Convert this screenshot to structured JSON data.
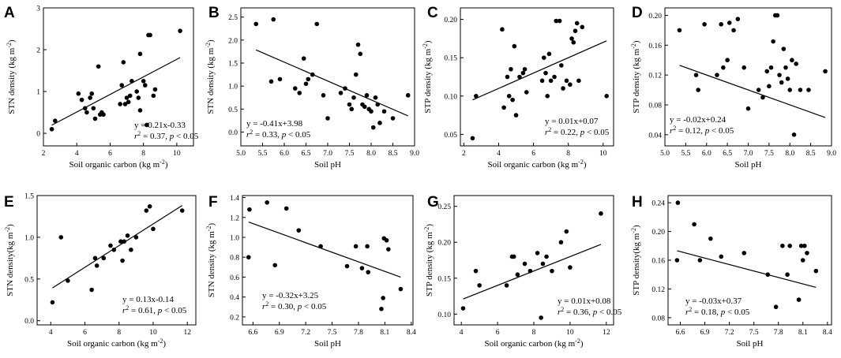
{
  "chart_data": [
    {
      "letter": "A",
      "type": "scatter",
      "xlabel": "Soil organic carbon (kg m⁻²)",
      "ylabel": "STN density (kg m⁻²)",
      "xlim": [
        2,
        11
      ],
      "ylim": [
        -0.3,
        3
      ],
      "xticks": [
        2,
        4,
        6,
        8,
        10
      ],
      "yticks": [
        0,
        1,
        2,
        3
      ],
      "x": [
        2.5,
        2.7,
        4.1,
        4.3,
        4.5,
        4.6,
        4.8,
        4.9,
        5.0,
        5.1,
        5.3,
        5.4,
        5.5,
        5.6,
        6.6,
        6.7,
        6.8,
        6.9,
        7.0,
        7.1,
        7.2,
        7.3,
        7.6,
        7.7,
        7.8,
        7.8,
        8.0,
        8.1,
        8.2,
        8.3,
        8.4,
        8.6,
        8.7,
        10.2
      ],
      "y": [
        0.1,
        0.3,
        0.95,
        0.8,
        0.6,
        0.5,
        0.85,
        0.95,
        0.6,
        0.35,
        1.6,
        0.45,
        0.5,
        0.45,
        0.7,
        1.15,
        1.7,
        0.7,
        0.85,
        0.75,
        0.9,
        1.25,
        1.0,
        0.85,
        1.9,
        0.55,
        1.25,
        1.15,
        0.2,
        2.35,
        2.35,
        0.9,
        1.05,
        2.45
      ],
      "fit": {
        "slope": 0.21,
        "intercept": -0.33
      },
      "equation": "y = 0.21x-0.33",
      "r2": "0.37",
      "p": "0.05"
    },
    {
      "letter": "B",
      "type": "scatter",
      "xlabel": "Soil pH",
      "ylabel": "STN density (kg m⁻²)",
      "xlim": [
        5,
        9
      ],
      "ylim": [
        -0.3,
        2.7
      ],
      "xticks": [
        5.0,
        5.5,
        6.0,
        6.5,
        7.0,
        7.5,
        8.0,
        8.5,
        9.0
      ],
      "yticks": [
        0.0,
        0.5,
        1.0,
        1.5,
        2.0,
        2.5
      ],
      "x": [
        5.35,
        5.7,
        5.75,
        5.9,
        6.25,
        6.35,
        6.45,
        6.5,
        6.55,
        6.65,
        6.75,
        6.9,
        7.0,
        7.3,
        7.4,
        7.5,
        7.55,
        7.6,
        7.65,
        7.7,
        7.75,
        7.8,
        7.85,
        7.9,
        7.95,
        8.0,
        8.05,
        8.1,
        8.15,
        8.2,
        8.3,
        8.5,
        8.85
      ],
      "y": [
        2.35,
        1.1,
        2.45,
        1.15,
        0.95,
        0.85,
        1.6,
        1.05,
        1.15,
        1.25,
        2.35,
        0.8,
        0.3,
        0.85,
        0.95,
        0.6,
        0.5,
        0.75,
        1.25,
        1.9,
        1.7,
        0.6,
        0.55,
        0.8,
        0.5,
        0.45,
        0.1,
        0.75,
        0.6,
        0.2,
        0.45,
        0.3,
        0.8
      ],
      "fit": {
        "slope": -0.41,
        "intercept": 3.98
      },
      "equation": "y = -0.41x+3.98",
      "r2": "0.33",
      "p": "0.05"
    },
    {
      "letter": "C",
      "type": "scatter",
      "xlabel": "Soil organic carbon (kg m⁻²)",
      "ylabel": "STP density (kg m⁻²)",
      "xlim": [
        1.8,
        10.6
      ],
      "ylim": [
        0.035,
        0.215
      ],
      "xticks": [
        2,
        4,
        6,
        8,
        10
      ],
      "yticks": [
        0.05,
        0.1,
        0.15,
        0.2
      ],
      "x": [
        2.5,
        2.7,
        4.2,
        4.3,
        4.5,
        4.6,
        4.7,
        4.8,
        4.9,
        5.0,
        5.2,
        5.4,
        5.5,
        5.6,
        6.5,
        6.6,
        6.7,
        6.8,
        6.9,
        7.0,
        7.2,
        7.3,
        7.5,
        7.6,
        7.7,
        7.9,
        8.1,
        8.2,
        8.3,
        8.4,
        8.5,
        8.6,
        8.8,
        10.2
      ],
      "y": [
        0.045,
        0.1,
        0.187,
        0.085,
        0.125,
        0.1,
        0.135,
        0.095,
        0.165,
        0.075,
        0.125,
        0.13,
        0.135,
        0.105,
        0.12,
        0.15,
        0.13,
        0.1,
        0.155,
        0.12,
        0.125,
        0.198,
        0.198,
        0.14,
        0.11,
        0.12,
        0.115,
        0.175,
        0.17,
        0.185,
        0.195,
        0.12,
        0.19,
        0.1
      ],
      "fit": {
        "slope": 0.01,
        "intercept": 0.07
      },
      "equation": "y = 0.01x+0.07",
      "r2": "0.22",
      "p": "0.05"
    },
    {
      "letter": "D",
      "type": "scatter",
      "xlabel": "Soil pH",
      "ylabel": "STP density (kg m⁻²)",
      "xlim": [
        5,
        9
      ],
      "ylim": [
        0.025,
        0.21
      ],
      "xticks": [
        5.0,
        5.5,
        6.0,
        6.5,
        7.0,
        7.5,
        8.0,
        8.5,
        9.0
      ],
      "yticks": [
        0.04,
        0.08,
        0.12,
        0.16,
        0.2
      ],
      "x": [
        5.35,
        5.75,
        5.8,
        5.95,
        6.25,
        6.35,
        6.4,
        6.5,
        6.55,
        6.65,
        6.75,
        6.9,
        7.0,
        7.25,
        7.35,
        7.45,
        7.5,
        7.55,
        7.6,
        7.65,
        7.7,
        7.75,
        7.8,
        7.85,
        7.9,
        7.95,
        8.0,
        8.05,
        8.1,
        8.15,
        8.25,
        8.45,
        8.85
      ],
      "y": [
        0.18,
        0.12,
        0.1,
        0.188,
        0.12,
        0.188,
        0.13,
        0.14,
        0.19,
        0.18,
        0.195,
        0.13,
        0.075,
        0.1,
        0.09,
        0.125,
        0.105,
        0.13,
        0.165,
        0.2,
        0.2,
        0.12,
        0.11,
        0.155,
        0.13,
        0.115,
        0.1,
        0.14,
        0.04,
        0.135,
        0.1,
        0.1,
        0.125
      ],
      "fit": {
        "slope": -0.02,
        "intercept": 0.24
      },
      "equation": "y = -0.02x+0.24",
      "r2": "0.12",
      "p": "0.05"
    },
    {
      "letter": "E",
      "type": "scatter",
      "xlabel": "Soil organic carbon (kg m⁻²)",
      "ylabel": "STN density(kg m⁻²)",
      "xlim": [
        3.2,
        12.5
      ],
      "ylim": [
        -0.05,
        1.5
      ],
      "xticks": [
        4,
        6,
        8,
        10,
        12
      ],
      "yticks": [
        0.0,
        0.5,
        1.0,
        1.5
      ],
      "x": [
        4.1,
        4.6,
        5.0,
        6.4,
        6.6,
        6.7,
        7.1,
        7.5,
        7.7,
        8.1,
        8.2,
        8.3,
        8.5,
        8.7,
        9.0,
        9.6,
        9.8,
        10.0,
        11.7
      ],
      "y": [
        0.22,
        1.0,
        0.48,
        0.37,
        0.75,
        0.66,
        0.75,
        0.9,
        0.85,
        0.95,
        0.72,
        0.95,
        1.02,
        0.85,
        1.0,
        1.32,
        1.37,
        1.1,
        1.32
      ],
      "fit": {
        "slope": 0.13,
        "intercept": -0.14
      },
      "equation": "y = 0.13x-0.14",
      "r2": "0.61",
      "p": "0.05"
    },
    {
      "letter": "F",
      "type": "scatter",
      "xlabel": "Soil pH",
      "ylabel": "STN density (kg m⁻²)",
      "xlim": [
        6.48,
        8.42
      ],
      "ylim": [
        0.12,
        1.42
      ],
      "xticks": [
        6.6,
        6.9,
        7.2,
        7.5,
        7.8,
        8.1,
        8.4
      ],
      "yticks": [
        0.2,
        0.4,
        0.6,
        0.8,
        1.0,
        1.2,
        1.4
      ],
      "x": [
        6.55,
        6.56,
        6.76,
        6.85,
        6.98,
        7.12,
        7.37,
        7.67,
        7.77,
        7.84,
        7.9,
        7.91,
        8.06,
        8.08,
        8.09,
        8.12,
        8.14,
        8.28
      ],
      "y": [
        0.8,
        1.28,
        1.35,
        0.72,
        1.29,
        1.07,
        0.91,
        0.71,
        0.91,
        0.69,
        0.91,
        0.65,
        0.28,
        0.39,
        0.99,
        0.97,
        0.88,
        0.48
      ],
      "fit": {
        "slope": -0.32,
        "intercept": 3.25
      },
      "equation": "y = -0.32x+3.25",
      "r2": "0.30",
      "p": "0.05"
    },
    {
      "letter": "G",
      "type": "scatter",
      "xlabel": "Soil organic carbon (kg m⁻²)",
      "ylabel": "STP density (kg m⁻²)",
      "xlim": [
        3.6,
        12.4
      ],
      "ylim": [
        0.085,
        0.265
      ],
      "xticks": [
        4,
        6,
        8,
        10,
        12
      ],
      "yticks": [
        0.1,
        0.15,
        0.2,
        0.25
      ],
      "x": [
        4.1,
        4.8,
        5.0,
        6.5,
        6.8,
        6.9,
        7.1,
        7.5,
        7.8,
        8.2,
        8.4,
        8.5,
        8.7,
        9.0,
        9.5,
        9.8,
        10.0,
        11.7
      ],
      "y": [
        0.108,
        0.16,
        0.14,
        0.14,
        0.18,
        0.18,
        0.155,
        0.17,
        0.16,
        0.185,
        0.095,
        0.17,
        0.18,
        0.16,
        0.2,
        0.215,
        0.165,
        0.24
      ],
      "fit": {
        "slope": 0.01,
        "intercept": 0.08
      },
      "equation": "y = 0.01x+0.08",
      "r2": "0.36",
      "p": "0.05"
    },
    {
      "letter": "H",
      "type": "scatter",
      "xlabel": "Soil pH",
      "ylabel": "STP density(kg m⁻²)",
      "xlim": [
        6.45,
        8.45
      ],
      "ylim": [
        0.07,
        0.25
      ],
      "xticks": [
        6.6,
        6.9,
        7.2,
        7.5,
        7.8,
        8.1,
        8.4
      ],
      "yticks": [
        0.08,
        0.12,
        0.16,
        0.2,
        0.24
      ],
      "x": [
        6.56,
        6.57,
        6.77,
        6.84,
        6.97,
        7.1,
        7.38,
        7.67,
        7.77,
        7.85,
        7.91,
        7.94,
        8.05,
        8.08,
        8.1,
        8.12,
        8.15,
        8.26
      ],
      "y": [
        0.16,
        0.24,
        0.21,
        0.16,
        0.19,
        0.165,
        0.17,
        0.14,
        0.095,
        0.18,
        0.14,
        0.18,
        0.105,
        0.18,
        0.16,
        0.18,
        0.17,
        0.145
      ],
      "fit": {
        "slope": -0.03,
        "intercept": 0.37
      },
      "equation": "y = -0.03x+0.37",
      "r2": "0.18",
      "p": "0.05"
    }
  ]
}
